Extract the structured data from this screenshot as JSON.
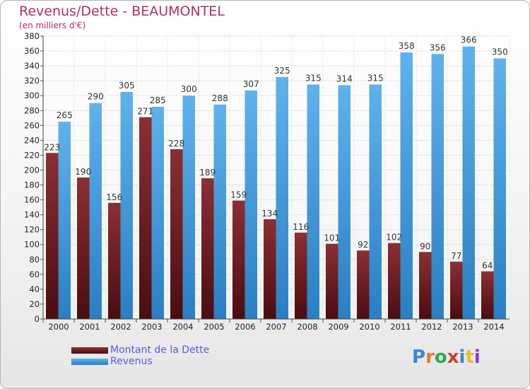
{
  "title": "Revenus/Dette - BEAUMONTEL",
  "subtitle": "(en milliers d'€)",
  "legend": {
    "debt_label": "Montant de la Dette",
    "revenue_label": "Revenus"
  },
  "logo_text": "Proxiti",
  "colors": {
    "debt_top": "#8c2f33",
    "debt_bottom": "#4a0d10",
    "revenue_top": "#5fb2ec",
    "revenue_bottom": "#2a7fc3",
    "title": "#b03060",
    "legend_text": "#5a5ae6"
  },
  "chart_data": {
    "type": "bar",
    "categories": [
      "2000",
      "2001",
      "2002",
      "2003",
      "2004",
      "2005",
      "2006",
      "2007",
      "2008",
      "2009",
      "2010",
      "2011",
      "2012",
      "2013",
      "2014"
    ],
    "series": [
      {
        "name": "Montant de la Dette",
        "values": [
          223,
          190,
          156,
          271,
          228,
          189,
          159,
          134,
          116,
          101,
          92,
          102,
          90,
          77,
          64
        ]
      },
      {
        "name": "Revenus",
        "values": [
          265,
          290,
          305,
          285,
          300,
          288,
          307,
          325,
          315,
          314,
          315,
          358,
          356,
          366,
          350
        ]
      }
    ],
    "ylim": [
      0,
      380
    ],
    "yticks": [
      0,
      20,
      40,
      60,
      80,
      100,
      120,
      140,
      160,
      180,
      200,
      220,
      240,
      260,
      280,
      300,
      320,
      340,
      360,
      380
    ],
    "grid": true
  }
}
